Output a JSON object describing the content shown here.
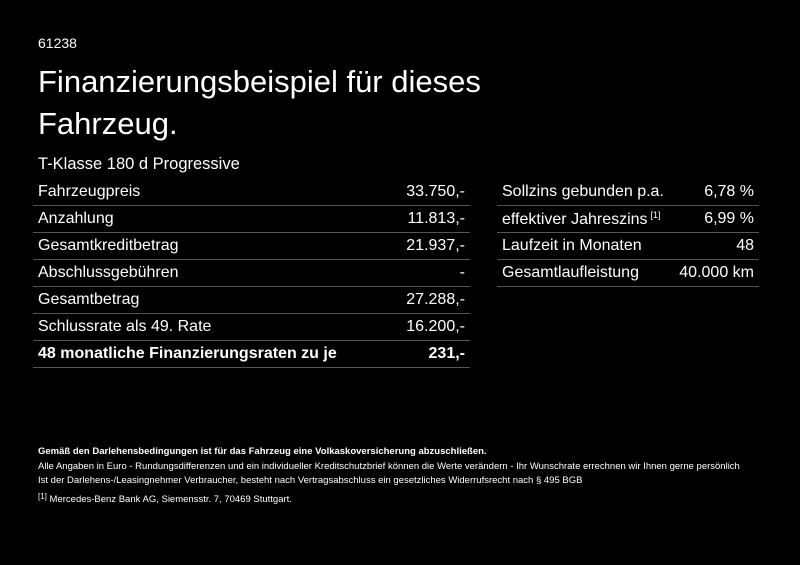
{
  "header": {
    "id": "61238",
    "title_line1": "Finanzierungsbeispiel für dieses",
    "title_line2": "Fahrzeug.",
    "model": "T-Klasse 180 d Progressive"
  },
  "left_table": {
    "rows": [
      [
        "Fahrzeugpreis",
        "33.750,-"
      ],
      [
        "Anzahlung",
        "11.813,-"
      ],
      [
        "Gesamtkreditbetrag",
        "21.937,-"
      ],
      [
        "Abschlussgebühren",
        "-"
      ],
      [
        "Gesamtbetrag",
        "27.288,-"
      ],
      [
        "Schlussrate als 49. Rate",
        "16.200,-"
      ],
      [
        "48 monatliche Finanzierungsraten zu je",
        "231,-"
      ]
    ]
  },
  "right_table": {
    "rows": [
      [
        "Sollzins gebunden p.a.",
        "6,78 %"
      ],
      [
        "effektiver Jahreszins",
        "6,99 %"
      ],
      [
        "Laufzeit in Monaten",
        "48"
      ],
      [
        "Gesamtlaufleistung",
        "40.000 km"
      ]
    ],
    "note_marker": "[1]"
  },
  "footnotes": {
    "bold": "Gemäß den Darlehensbedingungen ist für das Fahrzeug eine Volkaskoversicherung abzuschließen.",
    "line1": "Alle Angaben in Euro - Rundungsdifferenzen und ein individueller Kreditschutzbrief können die Werte verändern - Ihr Wunschrate errechnen wir Ihnen gerne persönlich",
    "line2": "Ist der Darlehens-/Leasingnehmer Verbraucher, besteht nach Vertragsabschluss ein gesetzliches Widerrufsrecht nach § 495 BGB",
    "ref_marker": "[1]",
    "ref_text": "Mercedes-Benz Bank AG, Siemensstr. 7, 70469 Stuttgart."
  }
}
